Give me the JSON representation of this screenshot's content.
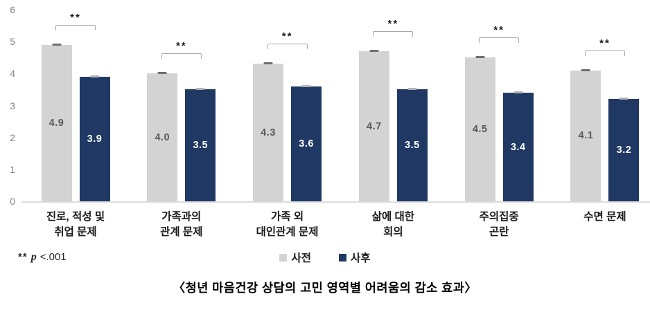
{
  "chart_data": {
    "type": "bar",
    "categories": [
      [
        "진로, 적성 및",
        "취업 문제"
      ],
      [
        "가족과의",
        "관계 문제"
      ],
      [
        "가족 외",
        "대인관계 문제"
      ],
      [
        "삶에 대한",
        "회의"
      ],
      [
        "주의집중",
        "곤란"
      ],
      [
        "수면 문제"
      ]
    ],
    "series": [
      {
        "name": "사전",
        "values": [
          4.9,
          4.0,
          4.3,
          4.7,
          4.5,
          4.1
        ],
        "color": "#d3d3d3",
        "label_color": "#595959",
        "cap_color": "#6f6f6f"
      },
      {
        "name": "사후",
        "values": [
          3.9,
          3.5,
          3.6,
          3.5,
          3.4,
          3.2
        ],
        "color": "#1f3864",
        "label_color": "#ffffff",
        "cap_color": "#b3b3b3"
      }
    ],
    "ylim": [
      0,
      6
    ],
    "yticks": [
      0,
      1,
      2,
      3,
      4,
      5,
      6
    ],
    "grid": false,
    "legend_position": "bottom",
    "significance_marker": "**",
    "error_bars": true
  },
  "footnote": {
    "stars": "**",
    "p_symbol": "p",
    "p_value": "<.001"
  },
  "caption": "〈청년 마음건강 상담의 고민 영역별 어려움의 감소 효과〉"
}
